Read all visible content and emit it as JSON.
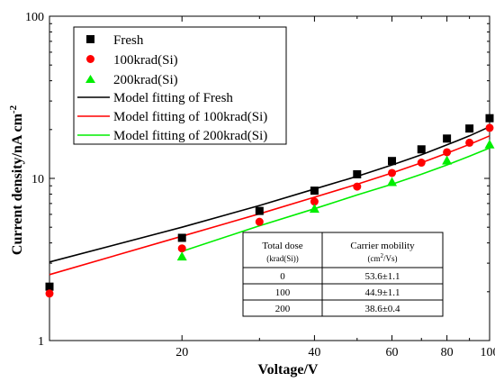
{
  "chart_data": {
    "type": "scatter",
    "xlabel": "Voltage/V",
    "ylabel": "Current density/nA cm",
    "ylabel_superscript": "-2",
    "xscale": "log",
    "yscale": "log",
    "xlim": [
      10,
      100
    ],
    "ylim": [
      1,
      100
    ],
    "x_tick_labels": [
      "20",
      "40",
      "60",
      "80",
      "100"
    ],
    "y_tick_labels": [
      "1",
      "10",
      "100"
    ],
    "series": [
      {
        "name": "Fresh",
        "kind": "markers",
        "marker": "square",
        "color": "#000000",
        "x": [
          10,
          20,
          30,
          40,
          50,
          60,
          70,
          80,
          90,
          100
        ],
        "y": [
          2.15,
          4.3,
          6.3,
          8.4,
          10.6,
          12.8,
          15.1,
          17.6,
          20.3,
          23.5
        ]
      },
      {
        "name": "100krad(Si)",
        "kind": "markers",
        "marker": "circle",
        "color": "#ff0000",
        "x": [
          10,
          20,
          30,
          40,
          50,
          60,
          70,
          80,
          90,
          100
        ],
        "y": [
          1.95,
          3.7,
          5.4,
          7.2,
          8.9,
          10.8,
          12.5,
          14.5,
          16.6,
          20.5
        ]
      },
      {
        "name": "200krad(Si)",
        "kind": "markers",
        "marker": "triangle",
        "color": "#00ee00",
        "x": [
          20,
          40,
          60,
          80,
          100
        ],
        "y": [
          3.3,
          6.5,
          9.5,
          12.9,
          16.2
        ]
      },
      {
        "name": "Model fitting of Fresh",
        "kind": "line",
        "color": "#000000",
        "x": [
          10,
          20,
          30,
          40,
          50,
          60,
          70,
          80,
          90,
          100
        ],
        "y": [
          3.05,
          5.0,
          6.8,
          8.6,
          10.3,
          12.1,
          14.0,
          16.1,
          18.3,
          20.8
        ]
      },
      {
        "name": "Model fitting of 100krad(Si)",
        "kind": "line",
        "color": "#ff0000",
        "x": [
          10,
          20,
          30,
          40,
          50,
          60,
          70,
          80,
          90,
          100
        ],
        "y": [
          2.55,
          4.4,
          6.05,
          7.65,
          9.2,
          10.8,
          12.5,
          14.3,
          16.2,
          18.3
        ]
      },
      {
        "name": "Model fitting of 200krad(Si)",
        "kind": "line",
        "color": "#00ee00",
        "x": [
          20,
          30,
          40,
          50,
          60,
          70,
          80,
          90,
          100
        ],
        "y": [
          3.55,
          5.1,
          6.5,
          7.9,
          9.2,
          10.6,
          12.1,
          13.7,
          15.4
        ]
      }
    ],
    "legend_position": "top-left",
    "table": {
      "header_dose": "Total dose",
      "header_dose_unit": "(krad(Si))",
      "header_mobility": "Carrier mobility",
      "header_mobility_unit": "(cm",
      "header_mobility_sup": "2",
      "header_mobility_unit_tail": "/Vs)",
      "rows": [
        {
          "dose": "0",
          "mobility": "53.6±1.1"
        },
        {
          "dose": "100",
          "mobility": "44.9±1.1"
        },
        {
          "dose": "200",
          "mobility": "38.6±0.4"
        }
      ]
    }
  }
}
